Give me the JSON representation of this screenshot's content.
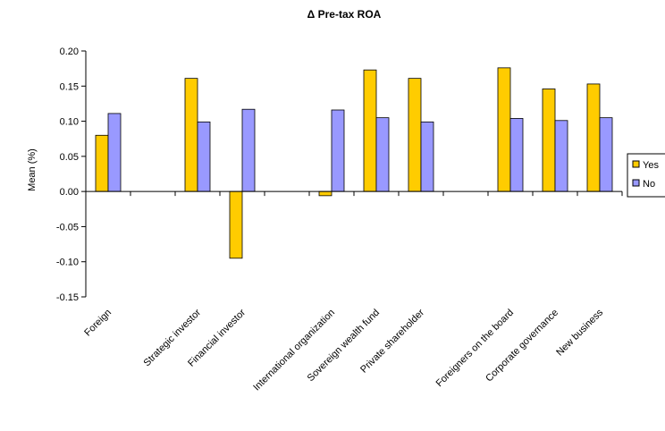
{
  "chart_data": {
    "type": "bar",
    "title": "Δ Pre-tax ROA",
    "ylabel": "Mean (%)",
    "xlabel": "",
    "ylim": [
      -0.15,
      0.2
    ],
    "yticks": [
      0.2,
      0.15,
      0.1,
      0.05,
      0.0,
      -0.05,
      -0.1,
      -0.15
    ],
    "ytick_labels": [
      "0.20",
      "0.15",
      "0.10",
      "0.05",
      "0.00",
      "-0.05",
      "-0.10",
      "-0.15"
    ],
    "categories": [
      "Foreign",
      "",
      "Strategic investor",
      "Financial investor",
      "",
      "International organization",
      "Sovereign wealth fund",
      "Private shareholder",
      "",
      "Foreigners on the board",
      "Corporate governance",
      "New business"
    ],
    "series": [
      {
        "name": "Yes",
        "color": "#FFCC00",
        "values": [
          0.08,
          null,
          0.161,
          -0.095,
          null,
          -0.006,
          0.173,
          0.161,
          null,
          0.176,
          0.146,
          0.153
        ]
      },
      {
        "name": "No",
        "color": "#9999FF",
        "values": [
          0.111,
          null,
          0.099,
          0.117,
          null,
          0.116,
          0.105,
          0.099,
          null,
          0.104,
          0.101,
          0.105
        ]
      }
    ],
    "legend": {
      "placement": "right",
      "entries": [
        "Yes",
        "No"
      ]
    },
    "grid": false
  }
}
